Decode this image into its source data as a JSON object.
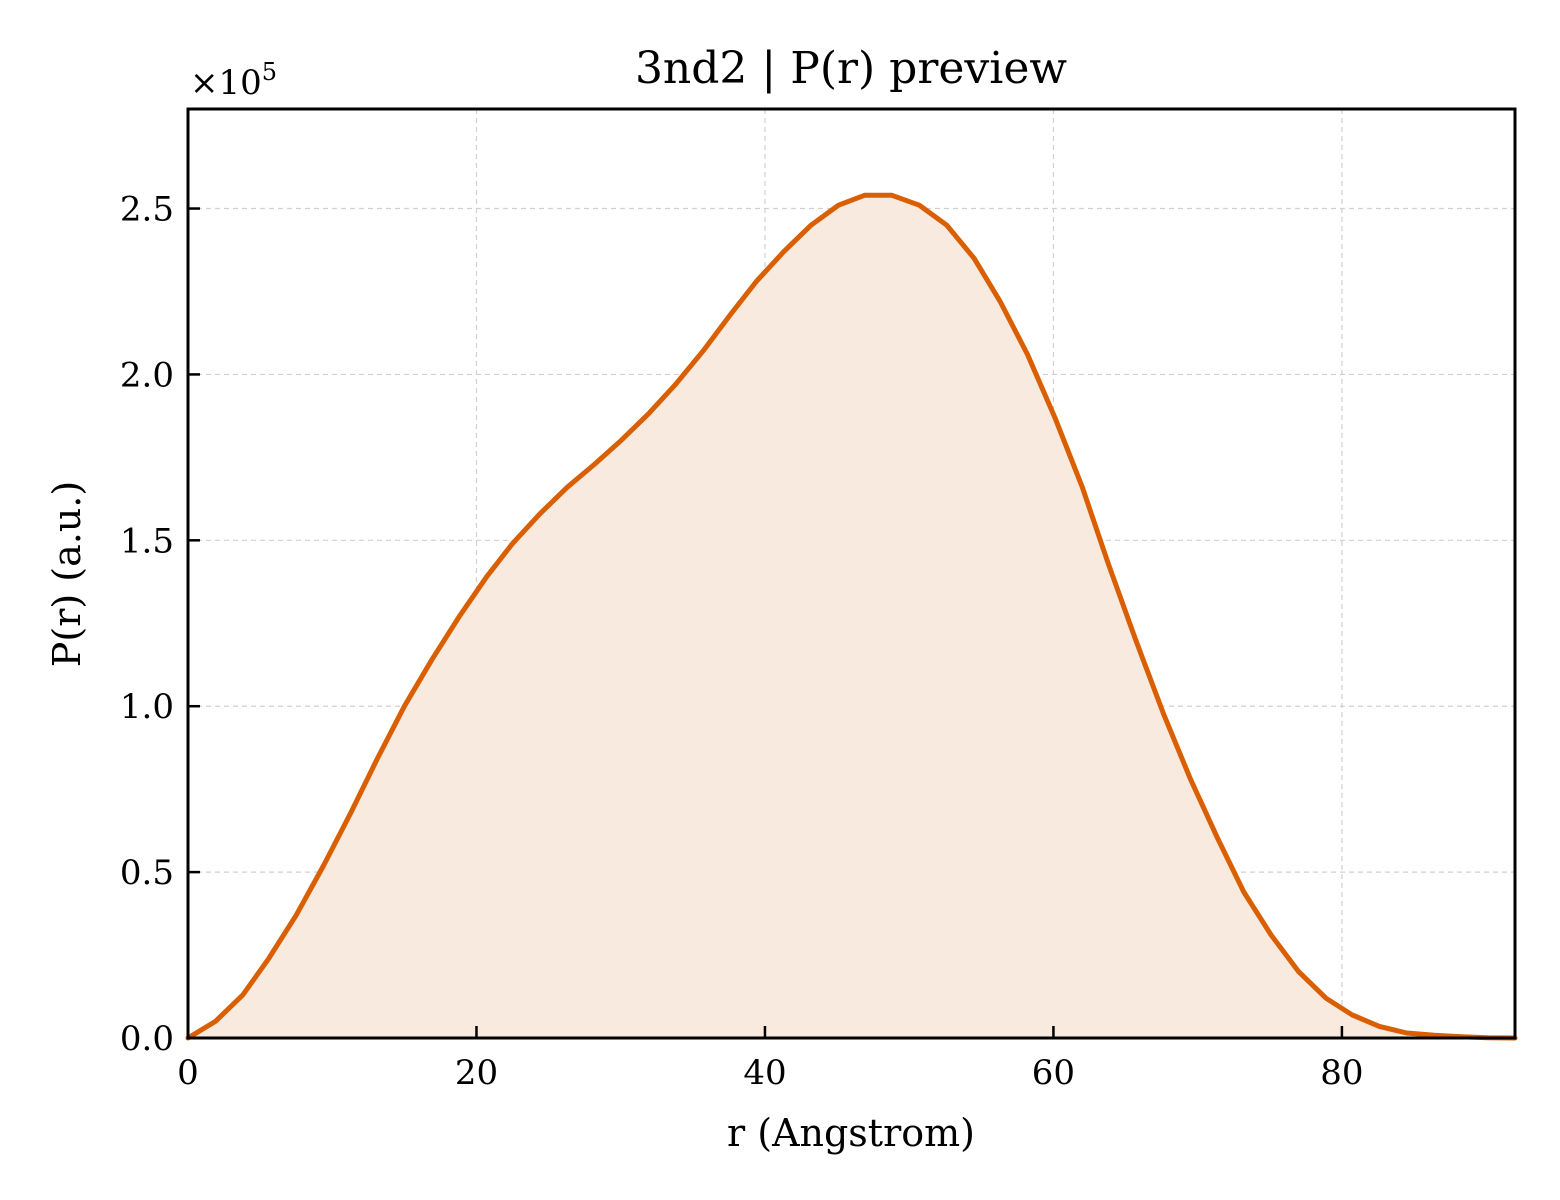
{
  "chart_data": {
    "type": "area",
    "title": "3nd2 | P(r) preview",
    "xlabel": "r (Angstrom)",
    "ylabel": "P(r) (a.u.)",
    "y_multiplier": {
      "base": "×10",
      "exponent": "5"
    },
    "xlim": [
      0,
      92
    ],
    "ylim": [
      0,
      2.8
    ],
    "x_ticks": [
      0,
      20,
      40,
      60,
      80
    ],
    "x_tick_labels": [
      "0",
      "20",
      "40",
      "60",
      "80"
    ],
    "y_ticks": [
      0.0,
      0.5,
      1.0,
      1.5,
      2.0,
      2.5
    ],
    "y_tick_labels": [
      "0.0",
      "0.5",
      "1.0",
      "1.5",
      "2.0",
      "2.5"
    ],
    "grid": true,
    "series": [
      {
        "color": "#d95f02",
        "fill_color": "#f8eadf",
        "x": [
          0,
          1.9,
          3.8,
          5.6,
          7.5,
          9.4,
          11.3,
          13.1,
          15.0,
          16.9,
          18.8,
          20.7,
          22.5,
          24.4,
          26.3,
          28.2,
          30.0,
          31.9,
          33.8,
          35.7,
          37.6,
          39.4,
          41.3,
          43.2,
          45.1,
          46.9,
          48.8,
          50.7,
          52.6,
          54.5,
          56.3,
          58.2,
          60.1,
          62.0,
          63.8,
          65.7,
          67.6,
          69.5,
          71.4,
          73.2,
          75.1,
          77.0,
          78.9,
          80.7,
          82.6,
          84.5,
          86.4,
          88.3,
          90.1,
          92.0
        ],
        "y": [
          0.0,
          0.05,
          0.13,
          0.24,
          0.37,
          0.52,
          0.68,
          0.84,
          1.0,
          1.14,
          1.27,
          1.39,
          1.49,
          1.58,
          1.66,
          1.73,
          1.8,
          1.88,
          1.97,
          2.07,
          2.18,
          2.28,
          2.37,
          2.45,
          2.51,
          2.54,
          2.54,
          2.51,
          2.45,
          2.35,
          2.22,
          2.06,
          1.87,
          1.66,
          1.43,
          1.2,
          0.98,
          0.78,
          0.6,
          0.44,
          0.31,
          0.2,
          0.12,
          0.07,
          0.035,
          0.015,
          0.008,
          0.004,
          0.001,
          0.0
        ]
      }
    ]
  }
}
